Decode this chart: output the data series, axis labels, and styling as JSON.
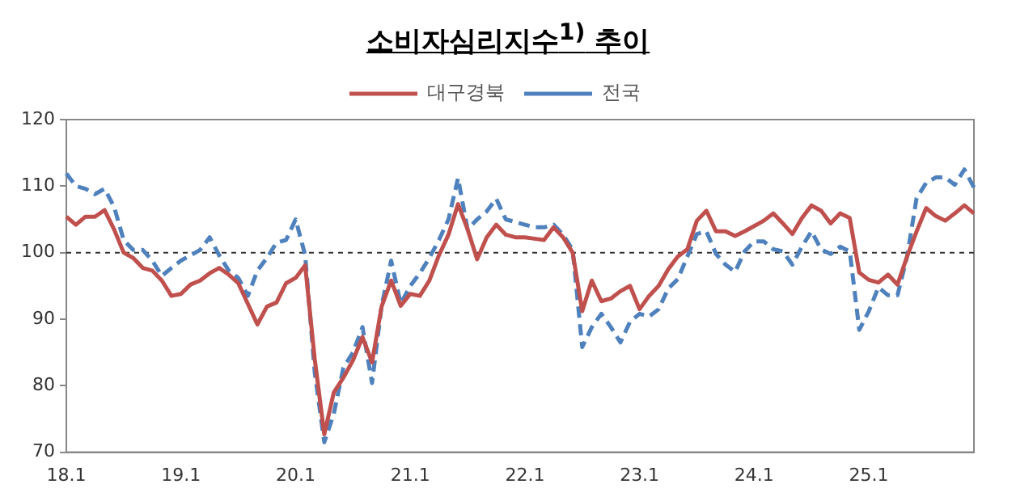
{
  "chart_data": {
    "type": "line",
    "title": "소비자심리지수$^{1)}$ 추이",
    "categories": [
      "18.1",
      null,
      null,
      null,
      null,
      null,
      null,
      null,
      null,
      null,
      null,
      null,
      "19.1",
      null,
      null,
      null,
      null,
      null,
      null,
      null,
      null,
      null,
      null,
      null,
      "20.1",
      null,
      null,
      null,
      null,
      null,
      null,
      null,
      null,
      null,
      null,
      null,
      "21.1",
      null,
      null,
      null,
      null,
      null,
      null,
      null,
      null,
      null,
      null,
      null,
      "22.1",
      null,
      null,
      null,
      null,
      null,
      null,
      null,
      null,
      null,
      null,
      null,
      "23.1",
      null,
      null,
      null,
      null,
      null,
      null,
      null,
      null,
      null,
      null,
      null,
      "24.1",
      null,
      null,
      null,
      null,
      null,
      null,
      null,
      null,
      null,
      null,
      null,
      "25.1",
      null,
      null,
      null,
      null,
      null,
      null,
      null,
      null,
      null,
      null,
      null
    ],
    "series": [
      {
        "name": "대구경북",
        "color": "#c0504d",
        "line_style": "solid",
        "values": [
          105.4,
          104.2,
          105.4,
          105.4,
          106.4,
          103.5,
          100.0,
          99.2,
          97.7,
          97.3,
          95.8,
          93.5,
          93.8,
          95.2,
          95.8,
          96.9,
          97.7,
          96.7,
          95.4,
          92.3,
          89.2,
          91.9,
          92.5,
          95.4,
          96.2,
          98.1,
          84.0,
          72.7,
          79.0,
          81.2,
          83.8,
          87.3,
          83.5,
          91.9,
          95.8,
          92.0,
          93.8,
          93.5,
          95.8,
          99.6,
          102.7,
          107.3,
          103.5,
          99.0,
          102.3,
          104.2,
          102.7,
          102.3,
          102.3,
          102.1,
          101.9,
          103.8,
          102.3,
          100.0,
          91.2,
          95.8,
          92.7,
          93.1,
          94.2,
          95.0,
          91.5,
          93.5,
          95.0,
          97.5,
          99.4,
          100.5,
          104.8,
          106.3,
          103.2,
          103.2,
          102.5,
          103.2,
          104.0,
          104.8,
          105.9,
          104.4,
          102.8,
          105.2,
          107.1,
          106.3,
          104.4,
          105.9,
          105.2,
          97.0,
          95.9,
          95.5,
          96.7,
          95.2,
          99.4,
          103.2,
          106.7,
          105.5,
          104.8,
          105.9,
          107.1,
          105.9
        ]
      },
      {
        "name": "전국",
        "color": "#4f81bd",
        "line_style": "dashed",
        "values": [
          111.9,
          110.0,
          109.6,
          108.8,
          109.6,
          106.9,
          101.9,
          100.4,
          100.4,
          98.8,
          96.5,
          97.7,
          98.8,
          99.6,
          100.4,
          102.3,
          99.6,
          97.3,
          96.2,
          93.5,
          97.3,
          99.2,
          101.5,
          101.9,
          105.0,
          99.6,
          82.0,
          71.5,
          75.8,
          82.7,
          85.0,
          88.8,
          80.4,
          92.0,
          98.8,
          92.3,
          95.0,
          96.9,
          99.2,
          101.9,
          105.0,
          111.2,
          103.5,
          105.0,
          106.2,
          108.1,
          105.0,
          104.6,
          104.2,
          103.8,
          103.8,
          104.2,
          102.7,
          100.4,
          85.8,
          88.8,
          90.8,
          88.8,
          86.5,
          89.6,
          90.8,
          90.4,
          91.5,
          94.6,
          96.0,
          99.4,
          102.8,
          103.2,
          99.8,
          98.2,
          97.1,
          100.2,
          101.7,
          101.7,
          100.5,
          100.2,
          98.2,
          100.9,
          103.2,
          100.5,
          99.8,
          100.9,
          100.2,
          88.4,
          91.2,
          94.8,
          93.6,
          93.6,
          99.4,
          108.2,
          110.5,
          111.3,
          111.3,
          110.2,
          112.5,
          109.8
        ]
      }
    ],
    "ylim": [
      70,
      120
    ],
    "yticks": [
      70,
      80,
      90,
      100,
      110,
      120
    ],
    "ref_lines": [
      {
        "axis": "y",
        "value": 100,
        "line_style": "dashed",
        "color": "#333333"
      }
    ],
    "grid": false,
    "legend": "top",
    "marker": "none"
  }
}
